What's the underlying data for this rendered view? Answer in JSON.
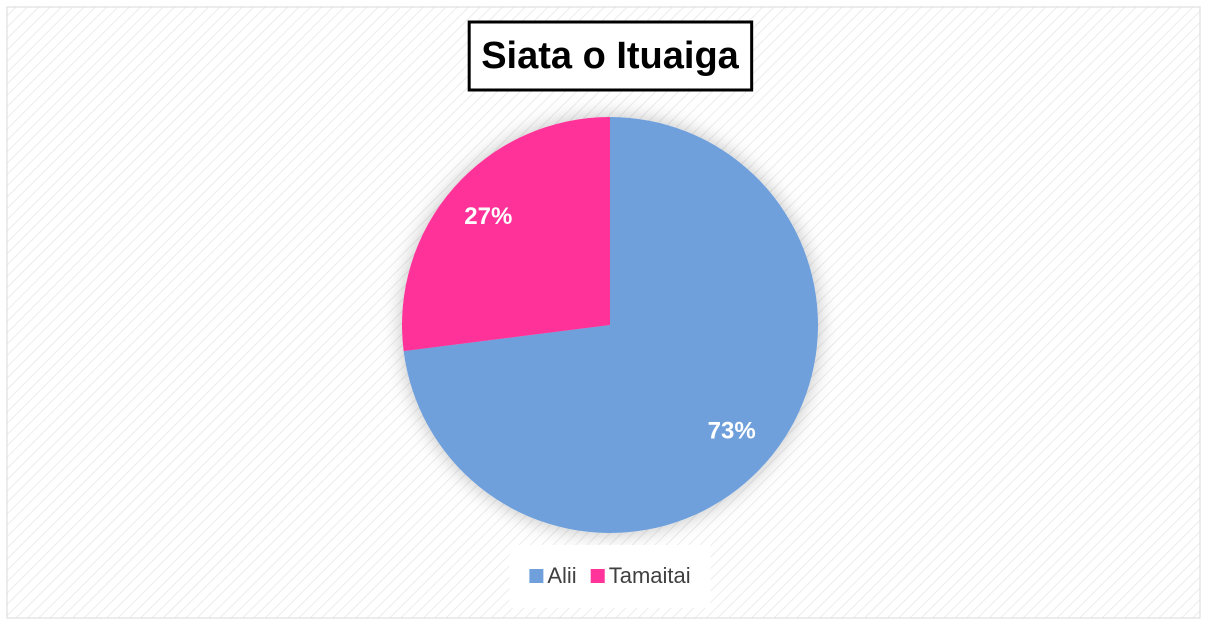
{
  "chart_data": {
    "type": "pie",
    "title": "Siata o Ituaiga",
    "categories": [
      "Alii",
      "Tamaitai"
    ],
    "values": [
      73,
      27
    ],
    "value_labels": [
      "73%",
      "27%"
    ],
    "colors": [
      "#6fa0dc",
      "#ff3399"
    ],
    "legend": "bottom"
  }
}
